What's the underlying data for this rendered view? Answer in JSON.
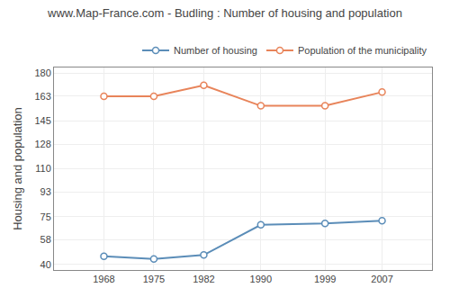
{
  "chart_data": {
    "type": "line",
    "title": "www.Map-France.com - Budling : Number of housing and population",
    "ylabel": "Housing and population",
    "x": [
      1968,
      1975,
      1982,
      1990,
      1999,
      2007
    ],
    "series": [
      {
        "name": "Number of housing",
        "color": "#5b8db8",
        "marker": "circle",
        "values": [
          46,
          44,
          47,
          69,
          70,
          72
        ]
      },
      {
        "name": "Population of the municipality",
        "color": "#e8845a",
        "marker": "circle",
        "values": [
          163,
          163,
          171,
          156,
          156,
          166
        ]
      }
    ],
    "xlim": [
      1961,
      2014
    ],
    "xticks": [
      1968,
      1975,
      1982,
      1990,
      1999,
      2007
    ],
    "ylim": [
      36,
      184
    ],
    "yticks": [
      40,
      58,
      75,
      93,
      110,
      128,
      145,
      163,
      180
    ],
    "grid": true,
    "legend": "upper right"
  }
}
